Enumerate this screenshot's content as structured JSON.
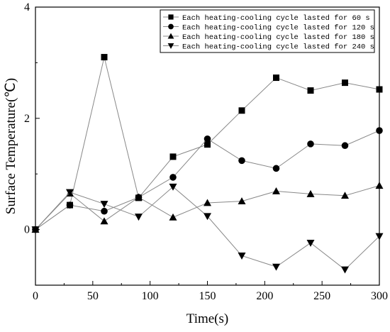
{
  "chart_data": {
    "type": "line",
    "title": "",
    "xlabel": "Time(s)",
    "ylabel": "Surface Temperature(℃)",
    "xlim": [
      0,
      300
    ],
    "ylim": [
      -1,
      4
    ],
    "xticks": [
      0,
      50,
      100,
      150,
      200,
      250,
      300
    ],
    "yticks": [
      0,
      2,
      4
    ],
    "grid": false,
    "legend_position": "top-right",
    "x": [
      0,
      30,
      60,
      90,
      120,
      150,
      180,
      210,
      240,
      270,
      300
    ],
    "series": [
      {
        "name": "Each heating-cooling cycle lasted for 60 s",
        "marker": "square",
        "values": [
          0.0,
          0.44,
          3.1,
          0.57,
          1.31,
          1.53,
          2.14,
          2.73,
          2.5,
          2.64,
          2.52
        ]
      },
      {
        "name": "Each heating-cooling cycle lasted for 120 s",
        "marker": "circle",
        "values": [
          0.0,
          0.44,
          0.33,
          0.58,
          0.94,
          1.63,
          1.24,
          1.1,
          1.54,
          1.51,
          1.78
        ]
      },
      {
        "name": "Each heating-cooling cycle lasted for 180 s",
        "marker": "triangle-up",
        "values": [
          0.0,
          0.65,
          0.15,
          0.58,
          0.22,
          0.48,
          0.51,
          0.69,
          0.64,
          0.61,
          0.79
        ]
      },
      {
        "name": "Each heating-cooling cycle lasted for 240 s",
        "marker": "triangle-down",
        "values": [
          0.0,
          0.67,
          0.46,
          0.23,
          0.77,
          0.24,
          -0.47,
          -0.67,
          -0.24,
          -0.72,
          -0.12
        ]
      }
    ],
    "colors": {
      "line": "#888888",
      "marker": "#000000",
      "axis": "#000000"
    }
  }
}
